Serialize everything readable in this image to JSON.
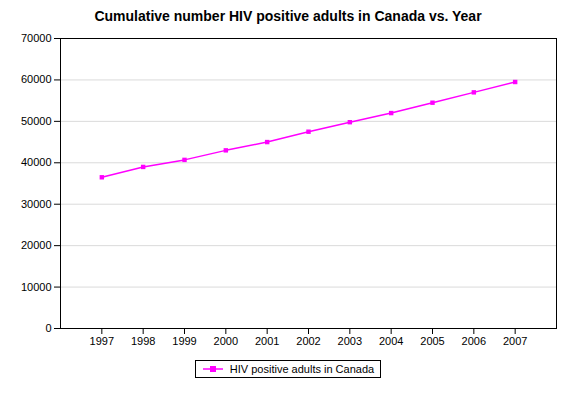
{
  "chart_data": {
    "type": "line",
    "title": "Cumulative number HIV positive adults in Canada vs. Year",
    "x": [
      1997,
      1998,
      1999,
      2000,
      2001,
      2002,
      2003,
      2004,
      2005,
      2006,
      2007
    ],
    "series": [
      {
        "name": "HIV positive adults in Canada",
        "color": "#ff00ff",
        "marker": "square",
        "values": [
          36500,
          39000,
          40700,
          43000,
          45000,
          47500,
          49800,
          52000,
          54500,
          57000,
          59500
        ]
      }
    ],
    "xlim": [
      1996,
      2008
    ],
    "xticks": [
      1997,
      1998,
      1999,
      2000,
      2001,
      2002,
      2003,
      2004,
      2005,
      2006,
      2007
    ],
    "ylim": [
      0,
      70000
    ],
    "yticks": [
      0,
      10000,
      20000,
      30000,
      40000,
      50000,
      60000,
      70000
    ],
    "grid": true,
    "legend": "bottom"
  }
}
